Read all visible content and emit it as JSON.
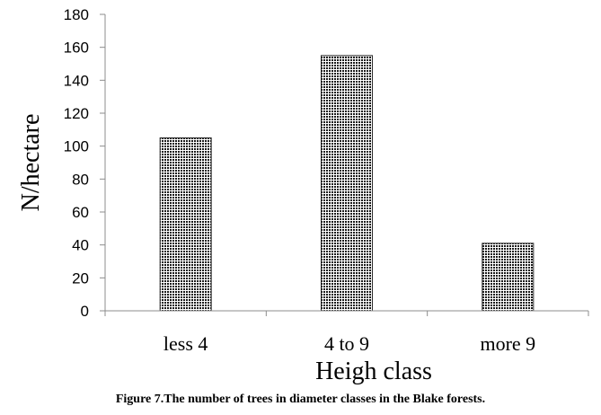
{
  "chart_data": {
    "type": "bar",
    "categories": [
      "less 4",
      "4 to 9",
      "more 9"
    ],
    "values": [
      105,
      155,
      41
    ],
    "xlabel": "Heigh class",
    "ylabel": "N/hectare",
    "ylim": [
      0,
      180
    ],
    "yticks": [
      "0",
      "20",
      "40",
      "60",
      "80",
      "100",
      "120",
      "140",
      "160",
      "180"
    ],
    "grid": false,
    "legend": "none",
    "bar_color": "#2a2a2a"
  },
  "caption": "Figure 7.The number of trees in diameter classes in the Blake forests."
}
